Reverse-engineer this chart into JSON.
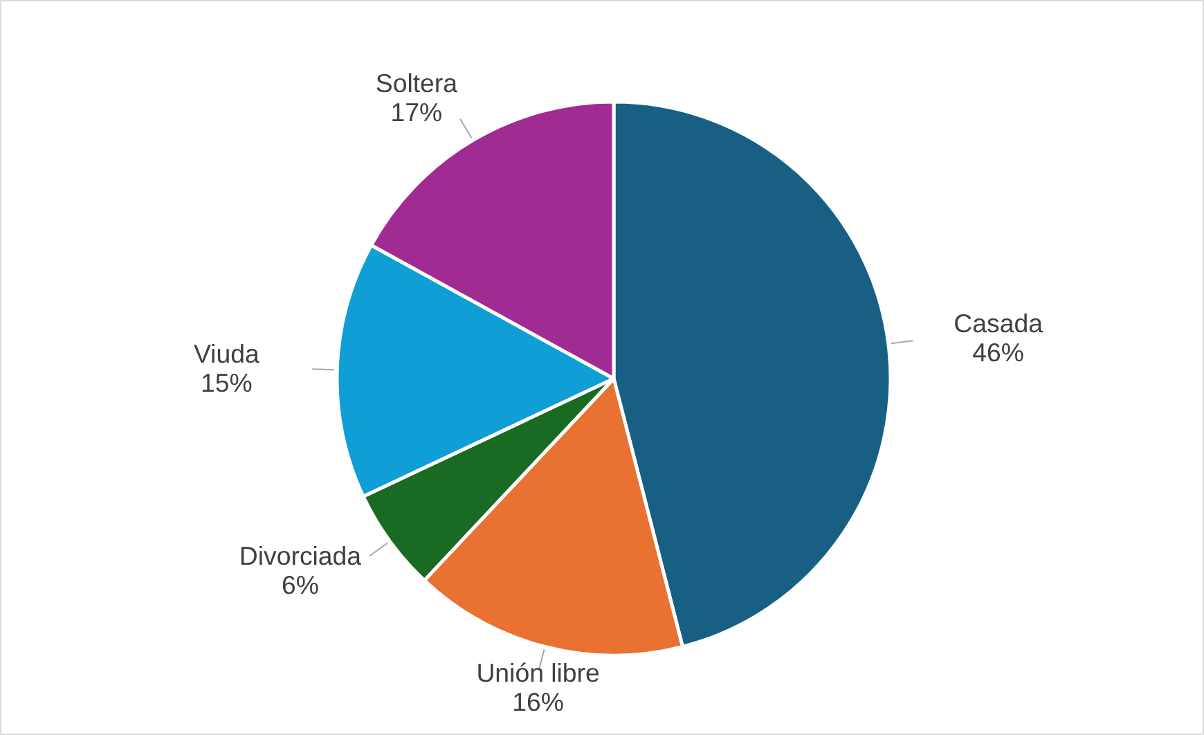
{
  "chart_data": {
    "type": "pie",
    "categories": [
      "Casada",
      "Unión libre",
      "Divorciada",
      "Viuda",
      "Soltera"
    ],
    "values": [
      46,
      16,
      6,
      15,
      17
    ],
    "colors": [
      "#176083",
      "#e97132",
      "#196b24",
      "#0f9ed5",
      "#a02b93"
    ],
    "value_labels": [
      "46%",
      "16%",
      "6%",
      "15%",
      "17%"
    ]
  }
}
